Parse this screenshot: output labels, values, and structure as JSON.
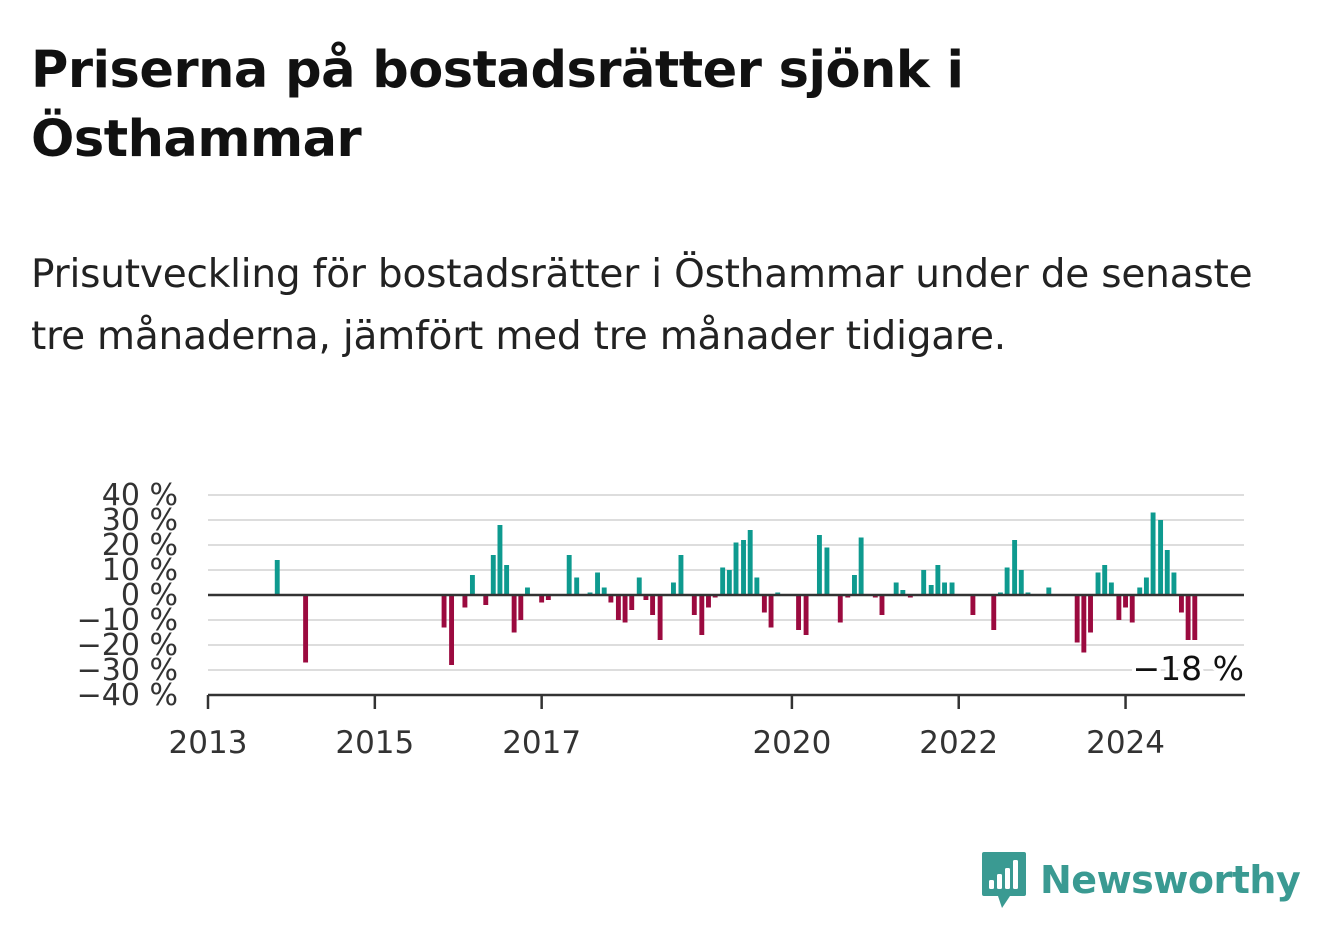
{
  "title": "Priserna på bostadsrätter sjönk i Östhammar",
  "subtitle": "Prisutveckling för bostadsrätter i Östhammar under de senaste tre månaderna, jämfört med tre månader tidigare.",
  "brand": {
    "name": "Newsworthy",
    "icon": "newsworthy-bar-chart-icon",
    "color": "#3a9a92"
  },
  "colors": {
    "positive": "#0e9a8f",
    "negative": "#9b0a3f",
    "grid": "#dddddd",
    "axis": "#333333"
  },
  "chart_data": {
    "type": "bar",
    "ylim": [
      -40,
      40
    ],
    "y_ticks": [
      40,
      30,
      20,
      10,
      0,
      -10,
      -20,
      -30,
      -40
    ],
    "y_tick_labels": [
      "40 %",
      "30 %",
      "20 %",
      "10 %",
      "0 %",
      "−10 %",
      "−20 %",
      "−30 %",
      "−40 %"
    ],
    "x_ticks": [
      {
        "x": 2013.0,
        "label": "2013"
      },
      {
        "x": 2015.0,
        "label": "2015"
      },
      {
        "x": 2017.0,
        "label": "2017"
      },
      {
        "x": 2020.0,
        "label": "2020"
      },
      {
        "x": 2022.0,
        "label": "2022"
      },
      {
        "x": 2024.0,
        "label": "2024"
      }
    ],
    "xlim": [
      2013.0,
      2025.42
    ],
    "bar_width_years": 0.0667,
    "annotation": "−18 %",
    "bars": [
      [
        2013.83,
        14
      ],
      [
        2014.17,
        -27
      ],
      [
        2015.83,
        -13
      ],
      [
        2015.92,
        -28
      ],
      [
        2016.08,
        -5
      ],
      [
        2016.17,
        8
      ],
      [
        2016.33,
        -4
      ],
      [
        2016.42,
        16
      ],
      [
        2016.5,
        28
      ],
      [
        2016.58,
        12
      ],
      [
        2016.67,
        -15
      ],
      [
        2016.75,
        -10
      ],
      [
        2016.83,
        3
      ],
      [
        2017.0,
        -3
      ],
      [
        2017.08,
        -2
      ],
      [
        2017.33,
        16
      ],
      [
        2017.42,
        7
      ],
      [
        2017.58,
        1
      ],
      [
        2017.67,
        9
      ],
      [
        2017.75,
        3
      ],
      [
        2017.83,
        -3
      ],
      [
        2017.92,
        -10
      ],
      [
        2018.0,
        -11
      ],
      [
        2018.08,
        -6
      ],
      [
        2018.17,
        7
      ],
      [
        2018.25,
        -2
      ],
      [
        2018.33,
        -8
      ],
      [
        2018.42,
        -18
      ],
      [
        2018.58,
        5
      ],
      [
        2018.67,
        16
      ],
      [
        2018.83,
        -8
      ],
      [
        2018.92,
        -16
      ],
      [
        2019.0,
        -5
      ],
      [
        2019.08,
        -1
      ],
      [
        2019.17,
        11
      ],
      [
        2019.25,
        10
      ],
      [
        2019.33,
        21
      ],
      [
        2019.42,
        22
      ],
      [
        2019.5,
        26
      ],
      [
        2019.58,
        7
      ],
      [
        2019.67,
        -7
      ],
      [
        2019.75,
        -13
      ],
      [
        2019.83,
        1
      ],
      [
        2020.08,
        -14
      ],
      [
        2020.17,
        -16
      ],
      [
        2020.33,
        24
      ],
      [
        2020.42,
        19
      ],
      [
        2020.58,
        -11
      ],
      [
        2020.67,
        -1
      ],
      [
        2020.75,
        8
      ],
      [
        2020.83,
        23
      ],
      [
        2021.0,
        -1
      ],
      [
        2021.08,
        -8
      ],
      [
        2021.25,
        5
      ],
      [
        2021.33,
        2
      ],
      [
        2021.42,
        -1
      ],
      [
        2021.58,
        10
      ],
      [
        2021.67,
        4
      ],
      [
        2021.75,
        12
      ],
      [
        2021.83,
        5
      ],
      [
        2021.92,
        5
      ],
      [
        2022.17,
        -8
      ],
      [
        2022.42,
        -14
      ],
      [
        2022.5,
        1
      ],
      [
        2022.58,
        11
      ],
      [
        2022.67,
        22
      ],
      [
        2022.75,
        10
      ],
      [
        2022.83,
        1
      ],
      [
        2023.08,
        3
      ],
      [
        2023.42,
        -19
      ],
      [
        2023.5,
        -23
      ],
      [
        2023.58,
        -15
      ],
      [
        2023.67,
        9
      ],
      [
        2023.75,
        12
      ],
      [
        2023.83,
        5
      ],
      [
        2023.92,
        -10
      ],
      [
        2024.0,
        -5
      ],
      [
        2024.08,
        -11
      ],
      [
        2024.17,
        3
      ],
      [
        2024.25,
        7
      ],
      [
        2024.33,
        33
      ],
      [
        2024.42,
        30
      ],
      [
        2024.5,
        18
      ],
      [
        2024.58,
        9
      ],
      [
        2024.67,
        -7
      ],
      [
        2024.75,
        -18
      ],
      [
        2024.83,
        -18
      ]
    ]
  }
}
